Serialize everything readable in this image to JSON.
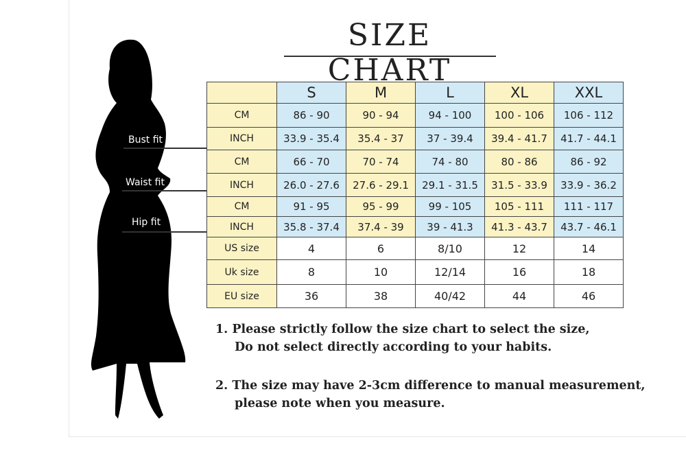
{
  "title": "SIZE CHART",
  "fit_labels": {
    "bust": "Bust fit",
    "waist": "Waist fit",
    "hip": "Hip fit"
  },
  "colors": {
    "yellow": "#fbf3c4",
    "blue": "#d2eaf6"
  },
  "table": {
    "columns": [
      "",
      "S",
      "M",
      "L",
      "XL",
      "XXL"
    ],
    "rows": [
      {
        "label": "CM",
        "values": [
          "86 - 90",
          "90 - 94",
          "94 - 100",
          "100 - 106",
          "106 - 112"
        ]
      },
      {
        "label": "INCH",
        "values": [
          "33.9 - 35.4",
          "35.4 - 37",
          "37 - 39.4",
          "39.4 - 41.7",
          "41.7 - 44.1"
        ]
      },
      {
        "label": "CM",
        "values": [
          "66 - 70",
          "70 - 74",
          "74 - 80",
          "80 - 86",
          "86 - 92"
        ]
      },
      {
        "label": "INCH",
        "values": [
          "26.0 - 27.6",
          "27.6 - 29.1",
          "29.1 - 31.5",
          "31.5 - 33.9",
          "33.9 - 36.2"
        ]
      },
      {
        "label": "CM",
        "values": [
          "91 - 95",
          "95 - 99",
          "99 - 105",
          "105 - 111",
          "111 - 117"
        ]
      },
      {
        "label": "INCH",
        "values": [
          "35.8 - 37.4",
          "37.4 - 39",
          "39 - 41.3",
          "41.3 - 43.7",
          "43.7 - 46.1"
        ]
      },
      {
        "label": "US size",
        "values": [
          "4",
          "6",
          "8/10",
          "12",
          "14"
        ]
      },
      {
        "label": "Uk size",
        "values": [
          "8",
          "10",
          "12/14",
          "16",
          "18"
        ]
      },
      {
        "label": "EU size",
        "values": [
          "36",
          "38",
          "40/42",
          "44",
          "46"
        ]
      }
    ]
  },
  "notes": [
    {
      "line1": "1.  Please strictly follow the size chart to select the size,",
      "line2": "Do not select directly according to your habits."
    },
    {
      "line1": "2.  The size may have 2-3cm difference  to manual measurement,",
      "line2": "please note when you measure."
    }
  ]
}
